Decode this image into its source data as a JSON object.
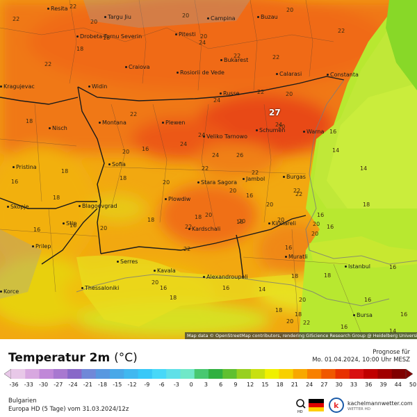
{
  "map": {
    "attribution": "Map data © OpenStreetMap contributors, rendering GIScience Research Group @ Heidelberg University",
    "max_value": "27",
    "cities": [
      {
        "name": "Resita"
      },
      {
        "name": "Targu Jiu"
      },
      {
        "name": "Drobeta-Turnu Severin"
      },
      {
        "name": "Pitesti"
      },
      {
        "name": "Campina"
      },
      {
        "name": "Buzau"
      },
      {
        "name": "Craiova"
      },
      {
        "name": "Rosiorii de Vede"
      },
      {
        "name": "Bukarest"
      },
      {
        "name": "Calarasi"
      },
      {
        "name": "Constanta"
      },
      {
        "name": "Kragujevac"
      },
      {
        "name": "Widin"
      },
      {
        "name": "Russe"
      },
      {
        "name": "Nisch"
      },
      {
        "name": "Montana"
      },
      {
        "name": "Plewen"
      },
      {
        "name": "Veliko Tarnowo"
      },
      {
        "name": "Schumen"
      },
      {
        "name": "Warna"
      },
      {
        "name": "Sofia"
      },
      {
        "name": "Pristina"
      },
      {
        "name": "Stara Sagora"
      },
      {
        "name": "Jambol"
      },
      {
        "name": "Burgas"
      },
      {
        "name": "Skopje"
      },
      {
        "name": "Blagoevgrad"
      },
      {
        "name": "Plowdiw"
      },
      {
        "name": "Stip"
      },
      {
        "name": "Kardschali"
      },
      {
        "name": "Kirklareli"
      },
      {
        "name": "Prilep"
      },
      {
        "name": "Serres"
      },
      {
        "name": "Kavala"
      },
      {
        "name": "Muratli"
      },
      {
        "name": "Istanbul"
      },
      {
        "name": "Alexandroupoli"
      },
      {
        "name": "Thessaloniki"
      },
      {
        "name": "Korce"
      },
      {
        "name": "Bursa"
      }
    ],
    "values": [
      "22",
      "20",
      "18",
      "18",
      "22",
      "22",
      "20",
      "20",
      "24",
      "22",
      "20",
      "22",
      "22",
      "22",
      "20",
      "20",
      "24",
      "26",
      "24",
      "22",
      "24",
      "24",
      "24",
      "16",
      "14",
      "20",
      "18",
      "20",
      "22",
      "22",
      "16",
      "18",
      "18",
      "18",
      "16",
      "20",
      "16",
      "20",
      "20",
      "16",
      "18",
      "16",
      "22",
      "14",
      "20",
      "16",
      "16",
      "18",
      "18",
      "20",
      "20",
      "20",
      "16",
      "22",
      "18",
      "22",
      "20",
      "18",
      "16",
      "16",
      "14",
      "18",
      "18",
      "16",
      "18",
      "20",
      "16",
      "16",
      "14",
      "16",
      "18",
      "20",
      "22",
      "20",
      "22"
    ]
  },
  "legend": {
    "title": "Temperatur 2m",
    "unit": "(°C)",
    "forecast_label": "Prognose für",
    "forecast_time": "Mo. 01.04.2024, 10:00 Uhr MESZ",
    "region": "Bulgarien",
    "model": "Europa HD (5 Tage) vom 31.03.2024/12z",
    "brand": "kachelmannwetter.com",
    "brand_sub": "WETTER HD",
    "ticks": [
      "-36",
      "-33",
      "-30",
      "-27",
      "-24",
      "-21",
      "-18",
      "-15",
      "-12",
      "-9",
      "-6",
      "-3",
      "0",
      "3",
      "6",
      "9",
      "12",
      "15",
      "18",
      "21",
      "24",
      "27",
      "30",
      "33",
      "36",
      "39",
      "44",
      "50"
    ],
    "colors": [
      "#e8c8e8",
      "#d8a8e0",
      "#c088d8",
      "#a878d0",
      "#8868c8",
      "#7088d8",
      "#5898e0",
      "#48a8e8",
      "#40b8f0",
      "#38c8f8",
      "#48d8f8",
      "#60e0e8",
      "#70e8c8",
      "#48c870",
      "#30b040",
      "#60c030",
      "#98d020",
      "#c8e010",
      "#f0f000",
      "#f8d000",
      "#f8a800",
      "#f88000",
      "#f05800",
      "#e83000",
      "#d81010",
      "#c00000",
      "#a00000",
      "#800000"
    ]
  }
}
